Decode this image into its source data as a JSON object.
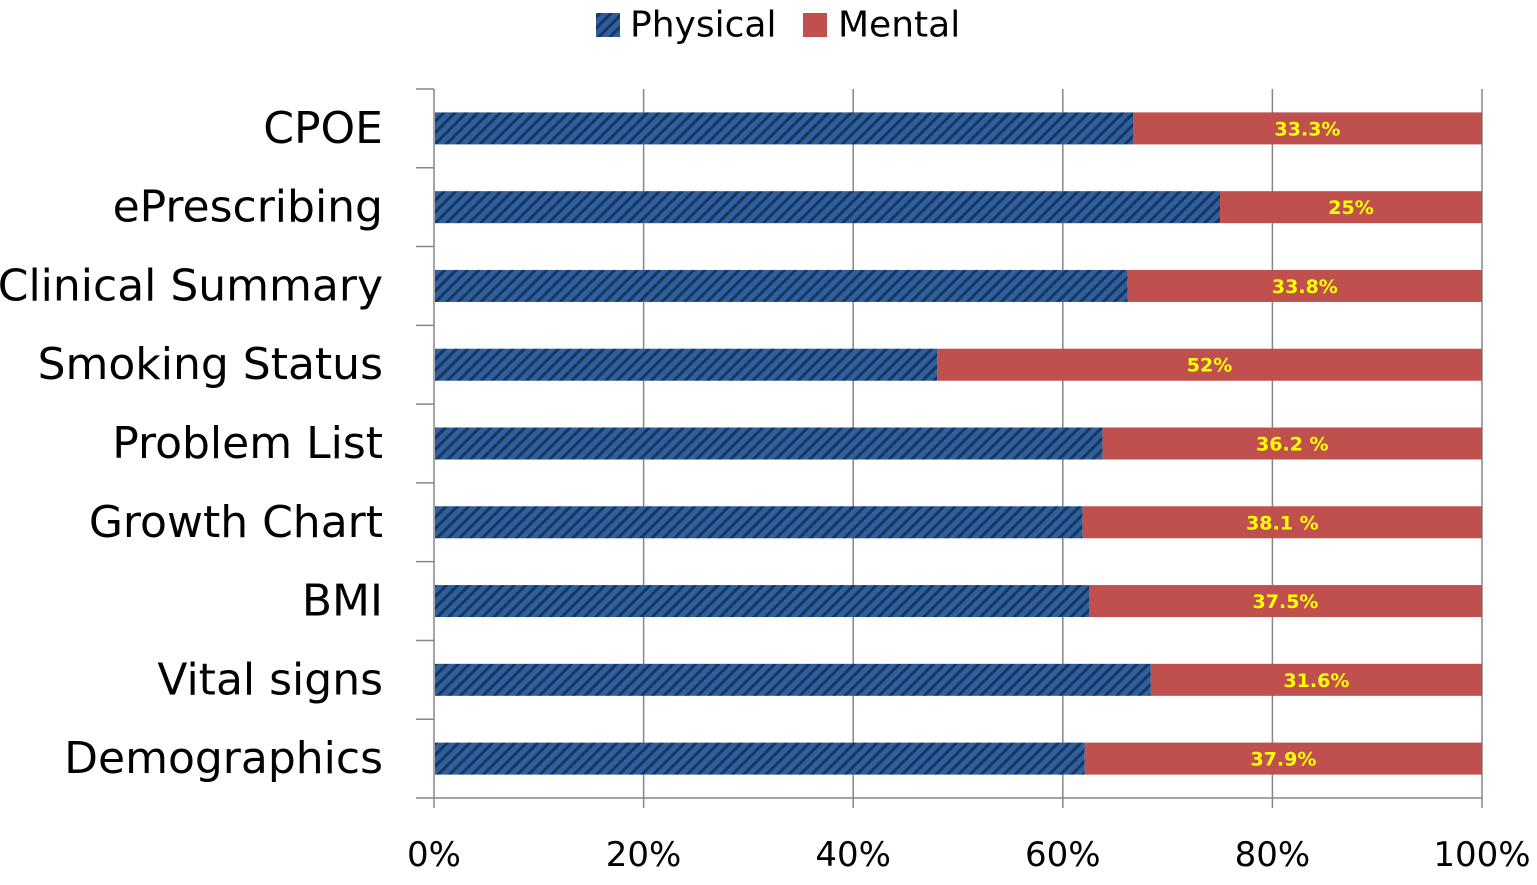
{
  "chart_data": {
    "type": "bar",
    "orientation": "horizontal",
    "stacked": true,
    "normalized_percent": true,
    "categories": [
      "CPOE",
      "ePrescribing",
      "Clinical Summary",
      "Smoking Status",
      "Problem List",
      "Growth Chart",
      "BMI",
      "Vital signs",
      "Demographics"
    ],
    "series": [
      {
        "name": "Physical",
        "color": "#2f5f9e",
        "pattern": "diagonal-stripes",
        "values": [
          66.7,
          75,
          66.2,
          48,
          63.8,
          61.9,
          62.5,
          68.4,
          62.1
        ]
      },
      {
        "name": "Mental",
        "color": "#c0504d",
        "values": [
          33.3,
          25,
          33.8,
          52,
          36.2,
          38.1,
          37.5,
          31.6,
          37.9
        ],
        "labels": [
          "33.3%",
          "25%",
          "33.8%",
          "52%",
          "36.2 %",
          "38.1 %",
          "37.5%",
          "31.6%",
          "37.9%"
        ]
      }
    ],
    "xlim": [
      0,
      100
    ],
    "x_ticks": [
      "0%",
      "20%",
      "40%",
      "60%",
      "80%",
      "100%"
    ],
    "x_tick_values": [
      0,
      20,
      40,
      60,
      80,
      100
    ],
    "data_label_color": "#ffff00",
    "grid": true,
    "legend_position": "top",
    "title": "",
    "xlabel": "",
    "ylabel": ""
  }
}
